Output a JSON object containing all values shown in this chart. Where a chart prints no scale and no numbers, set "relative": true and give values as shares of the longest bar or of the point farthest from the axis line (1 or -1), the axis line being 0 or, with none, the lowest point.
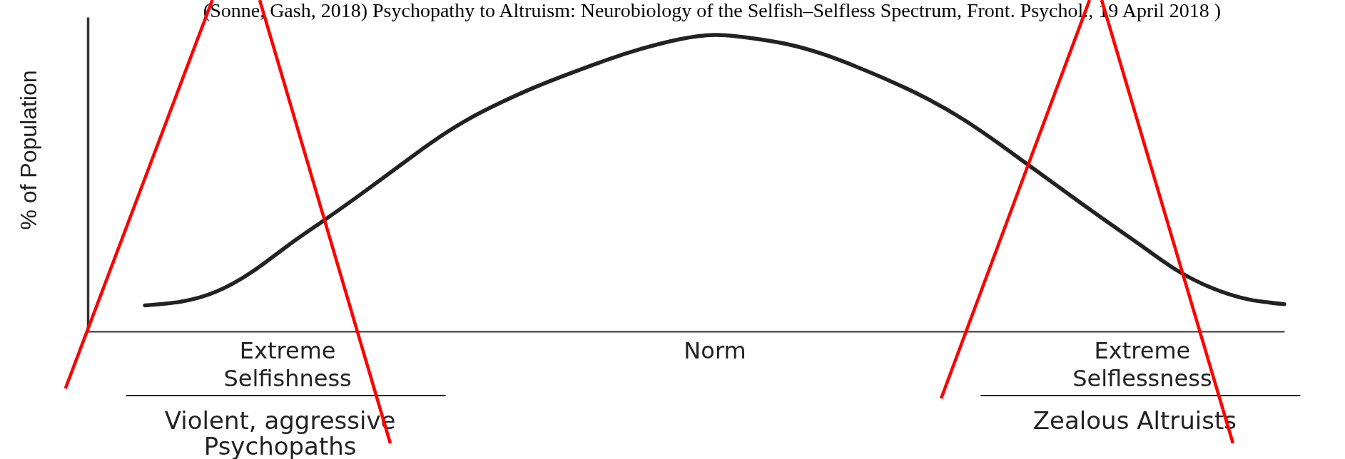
{
  "chart_data": {
    "type": "line",
    "title": "(Sonne, Gash, 2018) Psychopathy to Altruism: Neurobiology of the Selfish–Selfless Spectrum, Front. Psychol., 19 April 2018 )",
    "ylabel": "% of Population",
    "categories": [
      null,
      null,
      null,
      null,
      "Extreme Selfishness",
      null,
      null,
      null,
      null,
      null,
      null,
      null,
      null,
      null,
      null,
      null,
      "Norm",
      null,
      null,
      null,
      null,
      null,
      null,
      null,
      null,
      null,
      null,
      null,
      "Extreme Selflessness",
      null,
      null,
      null,
      null
    ],
    "values": [
      0.088,
      0.1,
      0.134,
      0.2,
      0.288,
      0.372,
      0.457,
      0.545,
      0.633,
      0.71,
      0.772,
      0.826,
      0.873,
      0.917,
      0.955,
      0.985,
      1,
      0.99,
      0.97,
      0.937,
      0.892,
      0.841,
      0.783,
      0.714,
      0.632,
      0.545,
      0.458,
      0.372,
      0.288,
      0.205,
      0.145,
      0.108,
      0.092
    ],
    "color": "#222222",
    "relative": true,
    "tick_labels": "x",
    "annotations": [
      "Violent, aggressive Psychopaths",
      "Zealous Altruists"
    ]
  }
}
